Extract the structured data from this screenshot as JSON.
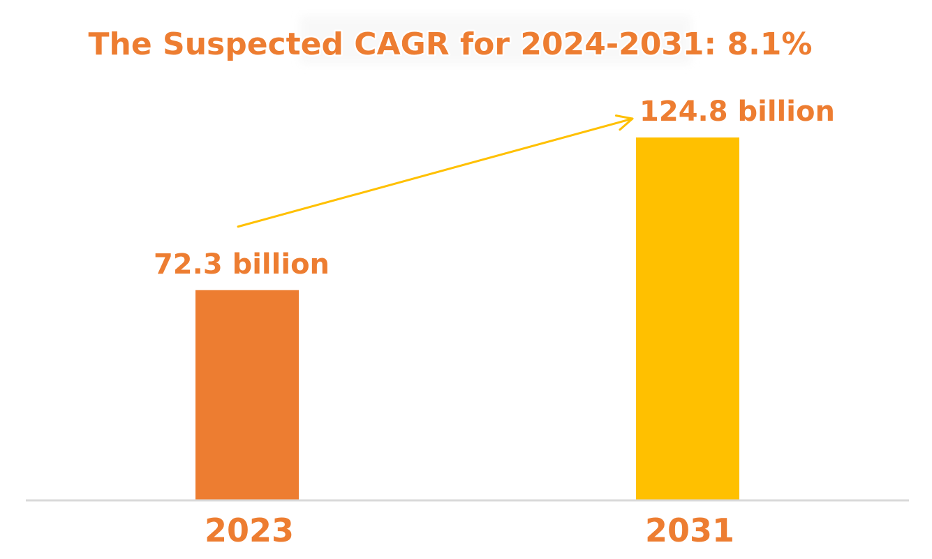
{
  "chart_data": {
    "type": "bar",
    "title": "The Suspected CAGR for 2024-2031: 8.1%",
    "categories": [
      "2023",
      "2031"
    ],
    "values": [
      72.3,
      124.8
    ],
    "data_labels": [
      "72.3 billion",
      "124.8 billion"
    ],
    "bar_colors": [
      "#ED7D31",
      "#FFC000"
    ],
    "label_color": "#ED7D31",
    "axis_color": "#D9D9D9",
    "arrow_color": "#FFC000",
    "annotation": "growth arrow from 2023 to 2031",
    "ylim": [
      0,
      124.8
    ],
    "grid": false,
    "legend": "none",
    "xlabel": "",
    "ylabel": ""
  }
}
